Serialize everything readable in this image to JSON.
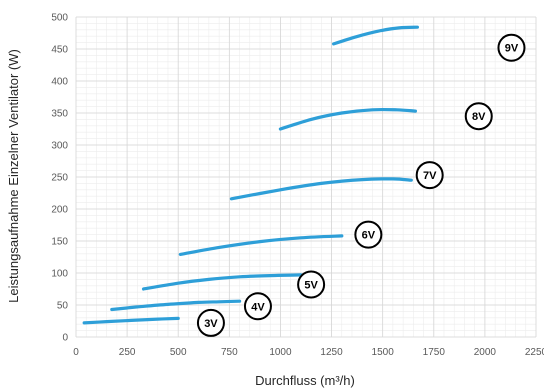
{
  "chart_data": {
    "type": "line",
    "xlabel": "Durchfluss (m³/h)",
    "ylabel": "Leistungsaufnahme Einzelner Ventilator (W)",
    "xlim": [
      0,
      2250
    ],
    "ylim": [
      0,
      500
    ],
    "x_ticks": [
      0,
      250,
      500,
      750,
      1000,
      1250,
      1500,
      1750,
      2000,
      2250
    ],
    "y_ticks": [
      0,
      50,
      100,
      150,
      200,
      250,
      300,
      350,
      400,
      450,
      500
    ],
    "grid": true,
    "series_color": "#2e9fd8",
    "series": [
      {
        "name": "3V",
        "label_at": [
          660,
          22
        ],
        "points": [
          [
            40,
            22
          ],
          [
            150,
            24
          ],
          [
            270,
            26
          ],
          [
            400,
            28
          ],
          [
            500,
            29
          ]
        ]
      },
      {
        "name": "4V",
        "label_at": [
          890,
          48
        ],
        "points": [
          [
            175,
            43
          ],
          [
            300,
            47
          ],
          [
            450,
            51
          ],
          [
            600,
            54
          ],
          [
            700,
            55
          ],
          [
            800,
            56
          ]
        ]
      },
      {
        "name": "5V",
        "label_at": [
          1150,
          82
        ],
        "points": [
          [
            330,
            75
          ],
          [
            500,
            84
          ],
          [
            650,
            90
          ],
          [
            800,
            94
          ],
          [
            950,
            96
          ],
          [
            1100,
            97
          ]
        ]
      },
      {
        "name": "6V",
        "label_at": [
          1430,
          160
        ],
        "points": [
          [
            510,
            129
          ],
          [
            700,
            140
          ],
          [
            900,
            149
          ],
          [
            1100,
            155
          ],
          [
            1300,
            158
          ]
        ]
      },
      {
        "name": "7V",
        "label_at": [
          1730,
          253
        ],
        "points": [
          [
            760,
            216
          ],
          [
            1000,
            230
          ],
          [
            1200,
            240
          ],
          [
            1400,
            246
          ],
          [
            1550,
            247
          ],
          [
            1640,
            245
          ]
        ]
      },
      {
        "name": "8V",
        "label_at": [
          1970,
          345
        ],
        "points": [
          [
            1000,
            325
          ],
          [
            1150,
            340
          ],
          [
            1300,
            350
          ],
          [
            1450,
            355
          ],
          [
            1570,
            355
          ],
          [
            1660,
            353
          ]
        ]
      },
      {
        "name": "9V",
        "label_at": [
          2130,
          452
        ],
        "points": [
          [
            1260,
            458
          ],
          [
            1370,
            469
          ],
          [
            1480,
            478
          ],
          [
            1580,
            483
          ],
          [
            1670,
            484
          ]
        ]
      }
    ]
  }
}
